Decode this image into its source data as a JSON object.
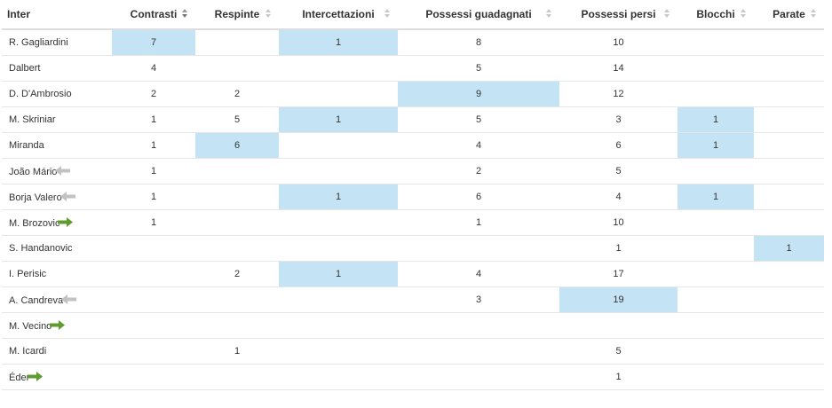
{
  "table": {
    "headers": {
      "team": "Inter",
      "contrasti": "Contrasti",
      "respinte": "Respinte",
      "intercettazioni": "Intercettazioni",
      "possessi_guadagnati": "Possessi guadagnati",
      "possessi_persi": "Possessi persi",
      "blocchi": "Blocchi",
      "parate": "Parate"
    },
    "sort": {
      "column": "contrasti",
      "direction": "desc"
    },
    "colors": {
      "highlight": "#c4e4f6",
      "sub_in_arrow": "#5f9c2f",
      "sub_out_arrow": "#c2c2c2",
      "header_border": "#dddddd"
    },
    "rows": [
      {
        "player": "R. Gagliardini",
        "sub": "none",
        "contrasti": "7",
        "respinte": "",
        "intercettazioni": "1",
        "possessi_guadagnati": "8",
        "possessi_persi": "10",
        "blocchi": "",
        "parate": ""
      },
      {
        "player": "Dalbert",
        "sub": "none",
        "contrasti": "4",
        "respinte": "",
        "intercettazioni": "",
        "possessi_guadagnati": "5",
        "possessi_persi": "14",
        "blocchi": "",
        "parate": ""
      },
      {
        "player": "D. D'Ambrosio",
        "sub": "none",
        "contrasti": "2",
        "respinte": "2",
        "intercettazioni": "",
        "possessi_guadagnati": "9",
        "possessi_persi": "12",
        "blocchi": "",
        "parate": ""
      },
      {
        "player": "M. Skriniar",
        "sub": "none",
        "contrasti": "1",
        "respinte": "5",
        "intercettazioni": "1",
        "possessi_guadagnati": "5",
        "possessi_persi": "3",
        "blocchi": "1",
        "parate": ""
      },
      {
        "player": "Miranda",
        "sub": "none",
        "contrasti": "1",
        "respinte": "6",
        "intercettazioni": "",
        "possessi_guadagnati": "4",
        "possessi_persi": "6",
        "blocchi": "1",
        "parate": ""
      },
      {
        "player": "João Mário",
        "sub": "out",
        "contrasti": "1",
        "respinte": "",
        "intercettazioni": "",
        "possessi_guadagnati": "2",
        "possessi_persi": "5",
        "blocchi": "",
        "parate": ""
      },
      {
        "player": "Borja Valero",
        "sub": "out",
        "contrasti": "1",
        "respinte": "",
        "intercettazioni": "1",
        "possessi_guadagnati": "6",
        "possessi_persi": "4",
        "blocchi": "1",
        "parate": ""
      },
      {
        "player": "M. Brozovic",
        "sub": "in",
        "contrasti": "1",
        "respinte": "",
        "intercettazioni": "",
        "possessi_guadagnati": "1",
        "possessi_persi": "10",
        "blocchi": "",
        "parate": ""
      },
      {
        "player": "S. Handanovic",
        "sub": "none",
        "contrasti": "",
        "respinte": "",
        "intercettazioni": "",
        "possessi_guadagnati": "",
        "possessi_persi": "1",
        "blocchi": "",
        "parate": "1"
      },
      {
        "player": "I. Perisic",
        "sub": "none",
        "contrasti": "",
        "respinte": "2",
        "intercettazioni": "1",
        "possessi_guadagnati": "4",
        "possessi_persi": "17",
        "blocchi": "",
        "parate": ""
      },
      {
        "player": "A. Candreva",
        "sub": "out",
        "contrasti": "",
        "respinte": "",
        "intercettazioni": "",
        "possessi_guadagnati": "3",
        "possessi_persi": "19",
        "blocchi": "",
        "parate": ""
      },
      {
        "player": "M. Vecino",
        "sub": "in",
        "contrasti": "",
        "respinte": "",
        "intercettazioni": "",
        "possessi_guadagnati": "",
        "possessi_persi": "",
        "blocchi": "",
        "parate": ""
      },
      {
        "player": "M. Icardi",
        "sub": "none",
        "contrasti": "",
        "respinte": "1",
        "intercettazioni": "",
        "possessi_guadagnati": "",
        "possessi_persi": "5",
        "blocchi": "",
        "parate": ""
      },
      {
        "player": "Éder",
        "sub": "in",
        "contrasti": "",
        "respinte": "",
        "intercettazioni": "",
        "possessi_guadagnati": "",
        "possessi_persi": "1",
        "blocchi": "",
        "parate": ""
      }
    ]
  }
}
